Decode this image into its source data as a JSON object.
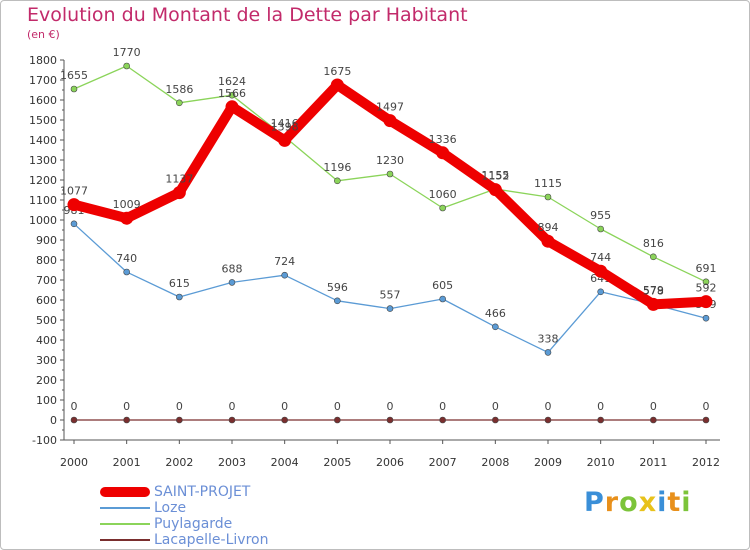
{
  "title": "Evolution du Montant de la Dette par Habitant",
  "subtitle": "(en €)",
  "logo": {
    "letters": [
      "P",
      "r",
      "o",
      "x",
      "i",
      "t",
      "i"
    ],
    "colors": [
      "#3a8fd8",
      "#e8901b",
      "#7cc43a",
      "#e8c21b",
      "#3a8fd8",
      "#e8901b",
      "#7cc43a"
    ]
  },
  "chart_data": {
    "type": "line",
    "x": [
      "2000",
      "2001",
      "2002",
      "2003",
      "2004",
      "2005",
      "2006",
      "2007",
      "2008",
      "2009",
      "2010",
      "2011",
      "2012"
    ],
    "ylim": [
      -100,
      1800
    ],
    "yticks": [
      -100,
      0,
      100,
      200,
      300,
      400,
      500,
      600,
      700,
      800,
      900,
      1000,
      1100,
      1200,
      1300,
      1400,
      1500,
      1600,
      1700,
      1800
    ],
    "grid": false,
    "legend_position": "bottom-left",
    "series": [
      {
        "name": "Lacapelle-Livron",
        "color": "#7a2e2e",
        "values": [
          0,
          0,
          0,
          0,
          0,
          0,
          0,
          0,
          0,
          0,
          0,
          0,
          0
        ],
        "labels": [
          "0",
          "0",
          "0",
          "0",
          "0",
          "0",
          "0",
          "0",
          "0",
          "0",
          "0",
          "0",
          "0"
        ]
      },
      {
        "name": "Loze",
        "color": "#5b9bd5",
        "values": [
          981,
          740,
          615,
          688,
          724,
          596,
          557,
          605,
          466,
          338,
          641,
          579,
          509
        ],
        "labels": [
          "981",
          "740",
          "615",
          "688",
          "724",
          "596",
          "557",
          "605",
          "466",
          "338",
          "641",
          "579",
          "509"
        ]
      },
      {
        "name": "Puylagarde",
        "color": "#8bd45a",
        "values": [
          1655,
          1770,
          1586,
          1624,
          1416,
          1196,
          1230,
          1060,
          1155,
          1115,
          955,
          816,
          691
        ],
        "labels": [
          "1655",
          "1770",
          "1586",
          "1624",
          "1416",
          "1196",
          "1230",
          "1060",
          "1155",
          "1115",
          "955",
          "816",
          "691"
        ]
      },
      {
        "name": "SAINT-PROJET",
        "color": "#ee0000",
        "values": [
          1077,
          1009,
          1137,
          1566,
          1398,
          1675,
          1497,
          1336,
          1152,
          894,
          744,
          578,
          592
        ],
        "labels": [
          "1077",
          "1009",
          "1137",
          "1566",
          "1398",
          "1675",
          "1497",
          "1336",
          "1152",
          "894",
          "744",
          "578",
          "592"
        ]
      }
    ]
  },
  "legend": {
    "items": [
      {
        "label": "SAINT-PROJET",
        "color": "#ee0000",
        "width": 10
      },
      {
        "label": "Loze",
        "color": "#5b9bd5",
        "width": 2
      },
      {
        "label": "Puylagarde",
        "color": "#8bd45a",
        "width": 2
      },
      {
        "label": "Lacapelle-Livron",
        "color": "#7a2e2e",
        "width": 2
      }
    ]
  }
}
